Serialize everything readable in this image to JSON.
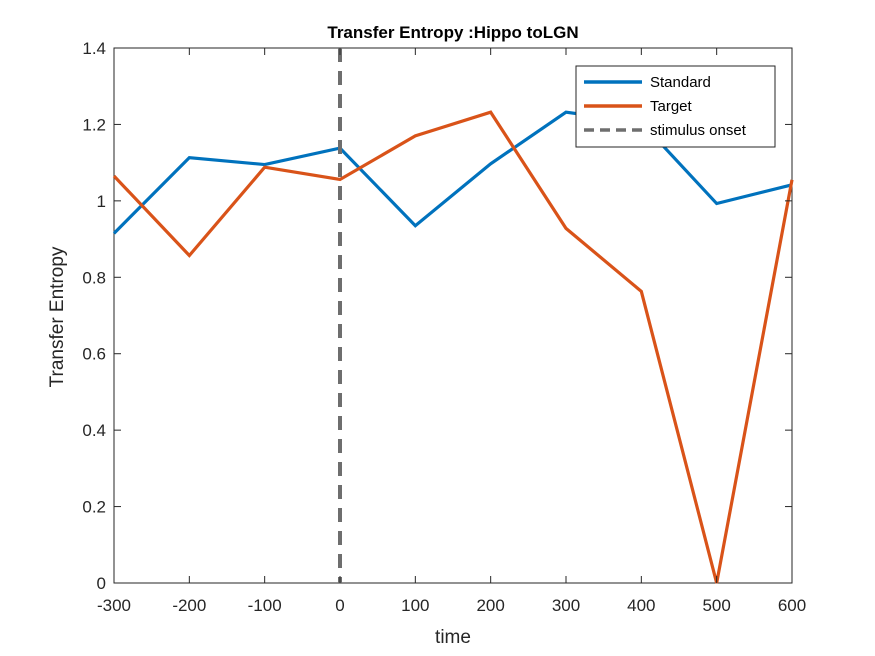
{
  "chart_data": {
    "type": "line",
    "title": "Transfer Entropy :Hippo toLGN",
    "xlabel": "time",
    "ylabel": "Transfer Entropy",
    "xlim": [
      -300,
      600
    ],
    "ylim": [
      0,
      1.4
    ],
    "x": [
      -300,
      -200,
      -100,
      0,
      100,
      200,
      300,
      400,
      500,
      600
    ],
    "xticks": [
      "-300",
      "-200",
      "-100",
      "0",
      "100",
      "200",
      "300",
      "400",
      "500",
      "600"
    ],
    "yticks": [
      "0",
      "0.2",
      "0.4",
      "0.6",
      "0.8",
      "1",
      "1.2",
      "1.4"
    ],
    "series": [
      {
        "name": "Standard",
        "color": "#0072BD",
        "values": [
          0.915,
          1.113,
          1.095,
          1.138,
          0.935,
          1.097,
          1.232,
          1.205,
          0.993,
          1.042
        ]
      },
      {
        "name": "Target",
        "color": "#D95319",
        "values": [
          1.065,
          0.857,
          1.088,
          1.056,
          1.17,
          1.232,
          0.928,
          0.763,
          0.0,
          1.055
        ]
      }
    ],
    "vline": {
      "name": "stimulus onset",
      "x": 0,
      "color": "#6E6E6E",
      "style": "dashed"
    },
    "legend_position": "top-right",
    "grid": false
  }
}
